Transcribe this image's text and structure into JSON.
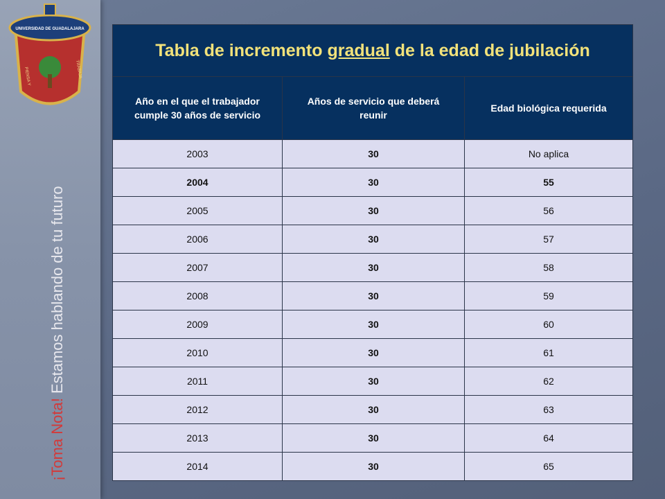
{
  "sidebar": {
    "logo_text": "UNIVERSIDAD DE GUADALAJARA",
    "logo_left": "PIENSA Y",
    "logo_right": "TRABAJA",
    "note": "¡Toma Nota!",
    "slogan": "Estamos hablando de tu futuro"
  },
  "table": {
    "title": {
      "before": "Tabla de incremento ",
      "underlined": "gradual",
      "after": " de la edad de jubilación"
    },
    "headers": [
      "Año en el que el trabajador cumple 30 años de servicio",
      "Años de servicio que deberá reunir",
      "Edad biológica requerida"
    ],
    "rows": [
      [
        2003,
        30,
        "No aplica"
      ],
      [
        2004,
        30,
        55
      ],
      [
        2005,
        30,
        56
      ],
      [
        2006,
        30,
        57
      ],
      [
        2007,
        30,
        58
      ],
      [
        2008,
        30,
        59
      ],
      [
        2009,
        30,
        60
      ],
      [
        2010,
        30,
        61
      ],
      [
        2011,
        30,
        62
      ],
      [
        2012,
        30,
        63
      ],
      [
        2013,
        30,
        64
      ],
      [
        2014,
        30,
        65
      ]
    ],
    "bold_row": 1
  }
}
